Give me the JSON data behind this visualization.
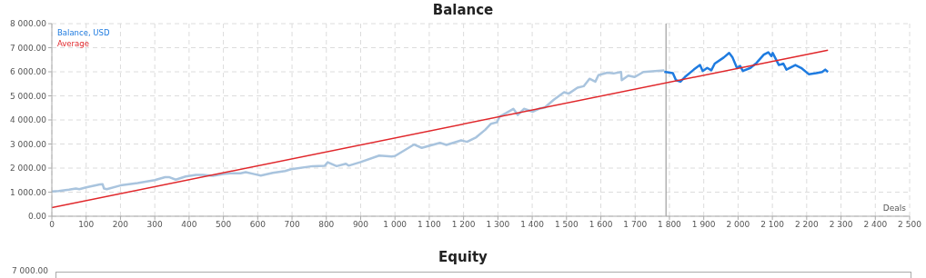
{
  "chart_data": [
    {
      "type": "line",
      "title": "Balance",
      "xlabel": "Deals",
      "xlim": [
        0,
        2500
      ],
      "xticks": [
        0,
        100,
        200,
        300,
        400,
        500,
        600,
        700,
        800,
        900,
        {
          "value": 1000,
          "label": "1 000"
        },
        {
          "value": 1100,
          "label": "1 100"
        },
        {
          "value": 1200,
          "label": "1 200"
        },
        {
          "value": 1300,
          "label": "1 300"
        },
        {
          "value": 1400,
          "label": "1 400"
        },
        {
          "value": 1500,
          "label": "1 500"
        },
        {
          "value": 1600,
          "label": "1 600"
        },
        {
          "value": 1700,
          "label": "1 700"
        },
        {
          "value": 1800,
          "label": "1 800"
        },
        {
          "value": 1900,
          "label": "1 900"
        },
        {
          "value": 2000,
          "label": "2 000"
        },
        {
          "value": 2100,
          "label": "2 100"
        },
        {
          "value": 2200,
          "label": "2 200"
        },
        {
          "value": 2300,
          "label": "2 300"
        },
        {
          "value": 2400,
          "label": "2 400"
        },
        {
          "value": 2500,
          "label": "2 500"
        }
      ],
      "ylim": [
        0,
        8000
      ],
      "yticks": [
        {
          "value": 0,
          "label": "0.00"
        },
        {
          "value": 1000,
          "label": "1 000.00"
        },
        {
          "value": 2000,
          "label": "2 000.00"
        },
        {
          "value": 3000,
          "label": "3 000.00"
        },
        {
          "value": 4000,
          "label": "4 000.00"
        },
        {
          "value": 5000,
          "label": "5 000.00"
        },
        {
          "value": 6000,
          "label": "6 000.00"
        },
        {
          "value": 7000,
          "label": "7 000.00"
        },
        {
          "value": 8000,
          "label": "8 000.00"
        }
      ],
      "grid": true,
      "legend": "top left",
      "marker": "none",
      "line_style": "solid",
      "ref_lines": [
        {
          "axis": "x",
          "value": 1790,
          "color": "#a0a0a0"
        }
      ],
      "series": [
        {
          "color": "#a9c4de",
          "x": [
            0,
            20,
            50,
            70,
            80,
            100,
            140,
            148,
            152,
            160,
            200,
            250,
            300,
            330,
            343,
            361,
            390,
            420,
            440,
            470,
            500,
            520,
            550,
            565,
            590,
            609,
            644,
            680,
            697,
            760,
            795,
            804,
            830,
            857,
            865,
            900,
            954,
            990,
            1000,
            1056,
            1078,
            1131,
            1150,
            1193,
            1210,
            1237,
            1263,
            1280,
            1297,
            1306,
            1323,
            1345,
            1358,
            1376,
            1402,
            1419,
            1437,
            1463,
            1493,
            1506,
            1532,
            1550,
            1567,
            1584,
            1593,
            1619,
            1637,
            1659,
            1661,
            1680,
            1698,
            1724,
            1758,
            1785
          ],
          "values": [
            1030,
            1050,
            1100,
            1150,
            1120,
            1200,
            1320,
            1330,
            1150,
            1120,
            1280,
            1380,
            1500,
            1620,
            1620,
            1520,
            1650,
            1720,
            1720,
            1680,
            1750,
            1780,
            1780,
            1830,
            1750,
            1690,
            1800,
            1880,
            1950,
            2080,
            2090,
            2240,
            2080,
            2180,
            2100,
            2250,
            2520,
            2480,
            2500,
            2980,
            2840,
            3050,
            2960,
            3150,
            3090,
            3280,
            3590,
            3840,
            3900,
            4150,
            4280,
            4460,
            4210,
            4460,
            4340,
            4460,
            4520,
            4840,
            5150,
            5090,
            5340,
            5400,
            5710,
            5590,
            5860,
            5960,
            5930,
            5990,
            5650,
            5840,
            5780,
            5990,
            6030,
            6060
          ]
        },
        {
          "name": "Balance, USD",
          "color": "#1e7be0",
          "x": [
            1785,
            1810,
            1819,
            1832,
            1845,
            1871,
            1889,
            1897,
            1910,
            1922,
            1932,
            1958,
            1974,
            1984,
            1997,
            2006,
            2014,
            2036,
            2054,
            2075,
            2088,
            2097,
            2101,
            2119,
            2132,
            2141,
            2167,
            2184,
            2206,
            2228,
            2245,
            2254,
            2262
          ],
          "values": [
            6000,
            5940,
            5650,
            5590,
            5780,
            6090,
            6280,
            6030,
            6160,
            6060,
            6340,
            6590,
            6780,
            6590,
            6150,
            6240,
            6030,
            6160,
            6370,
            6710,
            6810,
            6650,
            6780,
            6280,
            6340,
            6090,
            6280,
            6160,
            5900,
            5940,
            5990,
            6090,
            5990
          ]
        },
        {
          "name": "Average",
          "color": "#e0262a",
          "x": [
            0,
            2262
          ],
          "values": [
            360,
            6900
          ]
        }
      ]
    },
    {
      "type": "other",
      "title": "Equity",
      "annotations": [
        "7 000.00"
      ]
    }
  ]
}
